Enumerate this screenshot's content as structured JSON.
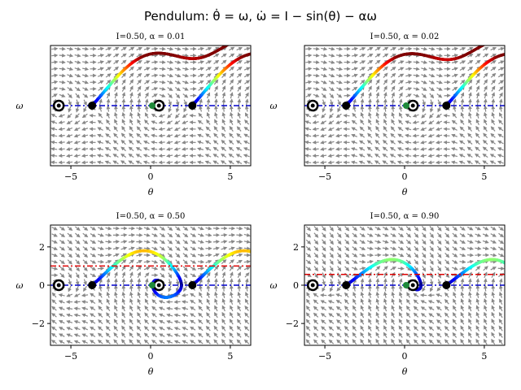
{
  "figure": {
    "title": "Pendulum: θ̇ = ω,   ω̇ = I − sin(θ) − αω"
  },
  "chart_data": [
    {
      "type": "scatter",
      "title": "I=0.50, α = 0.01",
      "xlabel": "θ",
      "ylabel": "ω",
      "xlim": [
        -6.28,
        6.28
      ],
      "ylim": [
        -3.14,
        3.14
      ],
      "xticks": [
        "−5",
        "0",
        "5"
      ],
      "xtick_values": [
        -5,
        0,
        5
      ],
      "yticks": [],
      "ytick_values": [],
      "grid": false,
      "I": 0.5,
      "alpha": 0.01,
      "stable_points_x": [
        -5.76,
        0.52
      ],
      "saddle_points_x": [
        -3.67,
        2.62
      ],
      "reference_lines": [
        {
          "y": 0,
          "color": "#0000cc"
        }
      ],
      "highlight_x": 0.1
    },
    {
      "type": "scatter",
      "title": "I=0.50, α = 0.02",
      "xlabel": "θ",
      "ylabel": "ω",
      "xlim": [
        -6.28,
        6.28
      ],
      "ylim": [
        -3.14,
        3.14
      ],
      "xticks": [
        "−5",
        "0",
        "5"
      ],
      "xtick_values": [
        -5,
        0,
        5
      ],
      "yticks": [],
      "ytick_values": [],
      "grid": false,
      "I": 0.5,
      "alpha": 0.02,
      "stable_points_x": [
        -5.76,
        0.52
      ],
      "saddle_points_x": [
        -3.67,
        2.62
      ],
      "reference_lines": [
        {
          "y": 0,
          "color": "#0000cc"
        }
      ],
      "highlight_x": 0.1
    },
    {
      "type": "scatter",
      "title": "I=0.50, α = 0.50",
      "xlabel": "θ",
      "ylabel": "ω",
      "xlim": [
        -6.28,
        6.28
      ],
      "ylim": [
        -3.14,
        3.14
      ],
      "xticks": [
        "−5",
        "0",
        "5"
      ],
      "xtick_values": [
        -5,
        0,
        5
      ],
      "yticks": [
        "−2",
        "0",
        "2"
      ],
      "ytick_values": [
        -2,
        0,
        2
      ],
      "grid": false,
      "I": 0.5,
      "alpha": 0.5,
      "stable_points_x": [
        -5.76,
        0.52
      ],
      "saddle_points_x": [
        -3.67,
        2.62
      ],
      "reference_lines": [
        {
          "y": 1.0,
          "color": "#dd0000"
        },
        {
          "y": 0,
          "color": "#0000cc"
        }
      ],
      "highlight_x": 0.1
    },
    {
      "type": "scatter",
      "title": "I=0.50, α = 0.90",
      "xlabel": "θ",
      "ylabel": "ω",
      "xlim": [
        -6.28,
        6.28
      ],
      "ylim": [
        -3.14,
        3.14
      ],
      "xticks": [
        "−5",
        "0",
        "5"
      ],
      "xtick_values": [
        -5,
        0,
        5
      ],
      "yticks": [
        "−2",
        "0",
        "2"
      ],
      "ytick_values": [
        -2,
        0,
        2
      ],
      "grid": false,
      "I": 0.5,
      "alpha": 0.9,
      "stable_points_x": [
        -5.76,
        0.52
      ],
      "saddle_points_x": [
        -3.67,
        2.62
      ],
      "reference_lines": [
        {
          "y": 0.56,
          "color": "#dd0000"
        },
        {
          "y": 0,
          "color": "#0000cc"
        }
      ],
      "highlight_x": 0.1
    }
  ],
  "colors": {
    "arrow": "#888888",
    "axes": "#000000",
    "stable_marker": "#000000",
    "highlight_marker": "#1f8a3a"
  }
}
